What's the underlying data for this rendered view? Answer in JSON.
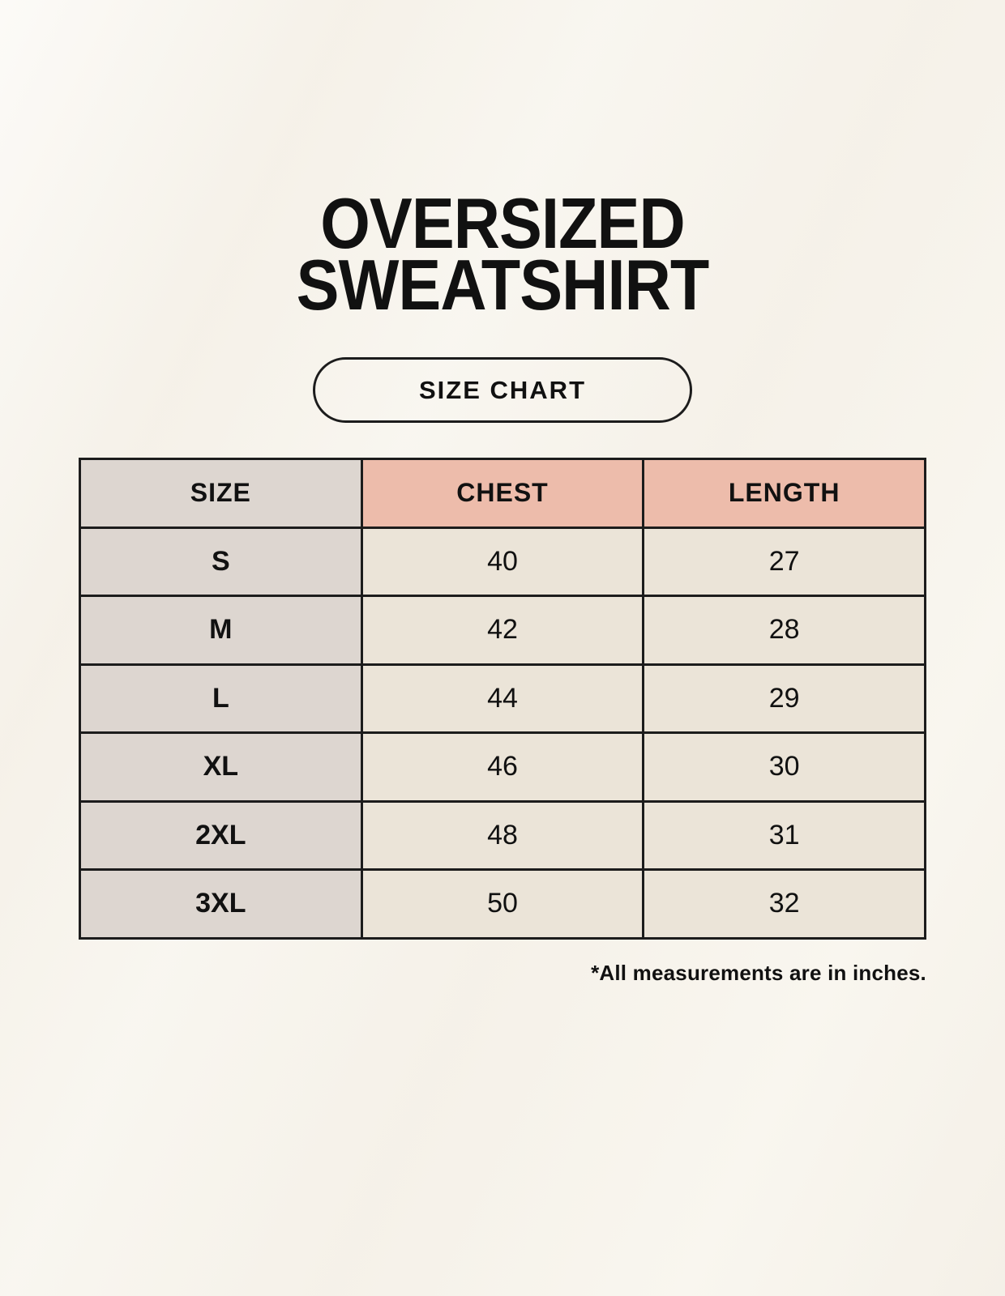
{
  "page": {
    "title_line1": "OVERSIZED",
    "title_line2": "SWEATSHIRT",
    "badge_label": "SIZE CHART",
    "footnote": "*All measurements are in inches."
  },
  "colors": {
    "background": "#f8f5ee",
    "size_column_bg": "#ddd6d0",
    "header_accent_bg": "#edbcab",
    "cell_bg": "#ebe4d8",
    "border": "#1c1c1c",
    "text": "#111111"
  },
  "chart_data": {
    "type": "table",
    "title": "OVERSIZED SWEATSHIRT SIZE CHART",
    "columns": [
      "SIZE",
      "CHEST",
      "LENGTH"
    ],
    "rows": [
      [
        "S",
        "40",
        "27"
      ],
      [
        "M",
        "42",
        "28"
      ],
      [
        "L",
        "44",
        "29"
      ],
      [
        "XL",
        "46",
        "30"
      ],
      [
        "2XL",
        "48",
        "31"
      ],
      [
        "3XL",
        "50",
        "32"
      ]
    ],
    "units": "inches",
    "layout": {
      "grid": true,
      "header_accent_columns": [
        "CHEST",
        "LENGTH"
      ]
    }
  }
}
